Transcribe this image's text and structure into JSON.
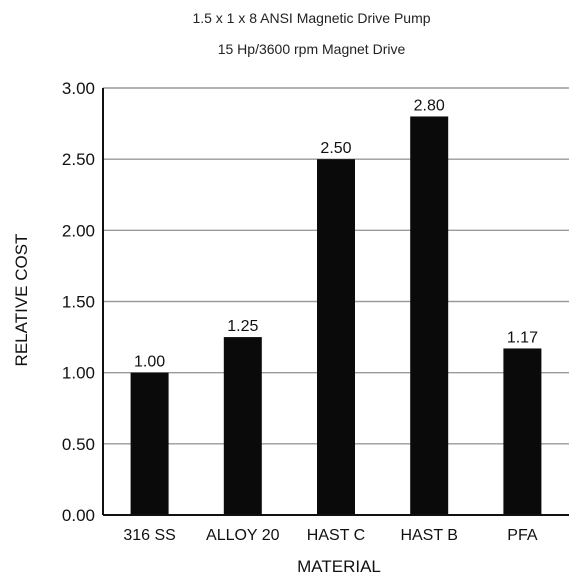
{
  "chart_data": {
    "type": "bar",
    "title": "1.5 x 1 x 8 ANSI Magnetic Drive Pump",
    "subtitle": "15 Hp/3600 rpm Magnet Drive",
    "xlabel": "MATERIAL",
    "ylabel": "RELATIVE COST",
    "categories": [
      "316 SS",
      "ALLOY 20",
      "HAST C",
      "HAST B",
      "PFA"
    ],
    "values": [
      1.0,
      1.25,
      2.5,
      2.8,
      1.17
    ],
    "data_labels": [
      "1.00",
      "1.25",
      "2.50",
      "2.80",
      "1.17"
    ],
    "ylim": [
      0,
      3
    ],
    "yticks": [
      "0.00",
      "0.50",
      "1.00",
      "1.50",
      "2.00",
      "2.50",
      "3.00"
    ],
    "grid": true,
    "bar_color": "#0a0a0a",
    "grid_color": "#9a9a9a"
  }
}
